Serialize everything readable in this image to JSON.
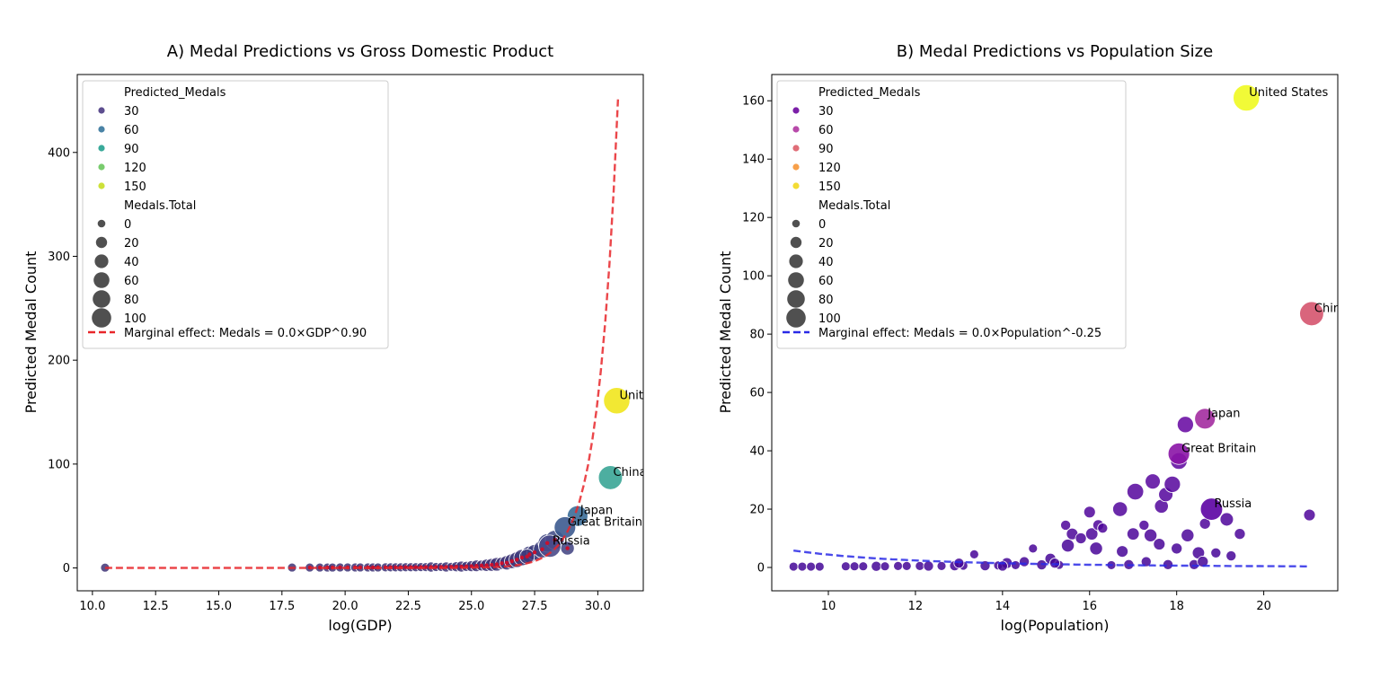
{
  "chart_data": [
    {
      "type": "scatter",
      "title": "A) Medal Predictions vs Gross Domestic Product",
      "xlabel": "log(GDP)",
      "ylabel": "Predicted Medal Count",
      "xlim": [
        9.4,
        31.8
      ],
      "ylim": [
        -22,
        475
      ],
      "xticks": [
        "10.0",
        "12.5",
        "15.0",
        "17.5",
        "20.0",
        "22.5",
        "25.0",
        "27.5",
        "30.0"
      ],
      "yticks": [
        "0",
        "100",
        "200",
        "300",
        "400"
      ],
      "xtick_values": [
        10,
        12.5,
        15,
        17.5,
        20,
        22.5,
        25,
        27.5,
        30
      ],
      "ytick_values": [
        0,
        100,
        200,
        300,
        400
      ],
      "palette": "viridis",
      "curve_color": "#e8262a",
      "legend": {
        "hue_title": "Predicted_Medals",
        "hue_entries": [
          {
            "label": "30",
            "color": "#5d4e8f"
          },
          {
            "label": "60",
            "color": "#4a83a6"
          },
          {
            "label": "90",
            "color": "#3aaa9a"
          },
          {
            "label": "120",
            "color": "#79cc6e"
          },
          {
            "label": "150",
            "color": "#cde13a"
          }
        ],
        "size_title": "Medals.Total",
        "size_entries": [
          "0",
          "20",
          "40",
          "60",
          "80",
          "100"
        ],
        "line_label": "Marginal effect: Medals = 0.0×GDP^0.90"
      },
      "curve": {
        "x_start": 10.5,
        "x_end": 30.8,
        "y_end": 452
      },
      "labeled_points": [
        {
          "name": "United States",
          "x": 30.75,
          "y": 161,
          "size": 113,
          "color": "#f1e51d"
        },
        {
          "name": "China",
          "x": 30.5,
          "y": 87,
          "size": 88,
          "color": "#3aa596"
        },
        {
          "name": "Japan",
          "x": 29.2,
          "y": 50,
          "size": 58,
          "color": "#3b6d98"
        },
        {
          "name": "Great Britain",
          "x": 28.7,
          "y": 39,
          "size": 65,
          "color": "#3c5a8f"
        },
        {
          "name": "Russia",
          "x": 28.1,
          "y": 21,
          "size": 71,
          "color": "#4a4a8a"
        }
      ],
      "points": [
        {
          "x": 10.5,
          "y": 0.3,
          "size": 2
        },
        {
          "x": 17.9,
          "y": 0.4,
          "size": 2
        },
        {
          "x": 18.6,
          "y": 0.4,
          "size": 2
        },
        {
          "x": 19.0,
          "y": 0.4,
          "size": 2
        },
        {
          "x": 19.3,
          "y": 0.4,
          "size": 2
        },
        {
          "x": 19.5,
          "y": 0.4,
          "size": 2
        },
        {
          "x": 19.8,
          "y": 0.5,
          "size": 2
        },
        {
          "x": 20.1,
          "y": 0.5,
          "size": 2
        },
        {
          "x": 20.4,
          "y": 0.5,
          "size": 2
        },
        {
          "x": 20.6,
          "y": 0.5,
          "size": 2
        },
        {
          "x": 20.9,
          "y": 0.5,
          "size": 2
        },
        {
          "x": 21.1,
          "y": 0.5,
          "size": 2
        },
        {
          "x": 21.3,
          "y": 0.5,
          "size": 2
        },
        {
          "x": 21.6,
          "y": 0.6,
          "size": 2
        },
        {
          "x": 21.8,
          "y": 0.6,
          "size": 2
        },
        {
          "x": 22.0,
          "y": 0.6,
          "size": 2
        },
        {
          "x": 22.2,
          "y": 0.6,
          "size": 2
        },
        {
          "x": 22.4,
          "y": 0.7,
          "size": 2
        },
        {
          "x": 22.6,
          "y": 0.7,
          "size": 2
        },
        {
          "x": 22.8,
          "y": 0.7,
          "size": 2
        },
        {
          "x": 23.0,
          "y": 0.8,
          "size": 2
        },
        {
          "x": 23.2,
          "y": 0.8,
          "size": 2
        },
        {
          "x": 23.4,
          "y": 0.9,
          "size": 4
        },
        {
          "x": 23.6,
          "y": 0.9,
          "size": 2
        },
        {
          "x": 23.8,
          "y": 1.0,
          "size": 2
        },
        {
          "x": 24.0,
          "y": 1.0,
          "size": 4
        },
        {
          "x": 24.2,
          "y": 1.1,
          "size": 2
        },
        {
          "x": 24.4,
          "y": 1.2,
          "size": 4
        },
        {
          "x": 24.6,
          "y": 1.3,
          "size": 6
        },
        {
          "x": 24.8,
          "y": 1.5,
          "size": 4
        },
        {
          "x": 25.0,
          "y": 1.7,
          "size": 6
        },
        {
          "x": 25.2,
          "y": 2.0,
          "size": 8
        },
        {
          "x": 25.4,
          "y": 2.3,
          "size": 6
        },
        {
          "x": 25.6,
          "y": 2.6,
          "size": 10
        },
        {
          "x": 25.8,
          "y": 3.0,
          "size": 12
        },
        {
          "x": 26.0,
          "y": 3.5,
          "size": 15
        },
        {
          "x": 26.2,
          "y": 4.5,
          "size": 10
        },
        {
          "x": 26.4,
          "y": 5.0,
          "size": 18
        },
        {
          "x": 26.6,
          "y": 6.5,
          "size": 20
        },
        {
          "x": 26.8,
          "y": 8.0,
          "size": 25
        },
        {
          "x": 27.0,
          "y": 10.0,
          "size": 28
        },
        {
          "x": 27.3,
          "y": 13.0,
          "size": 30
        },
        {
          "x": 27.5,
          "y": 15.0,
          "size": 25
        },
        {
          "x": 27.8,
          "y": 18.0,
          "size": 35
        },
        {
          "x": 28.0,
          "y": 24.0,
          "size": 40
        },
        {
          "x": 28.3,
          "y": 27.0,
          "size": 45
        },
        {
          "x": 28.8,
          "y": 19.0,
          "size": 15
        },
        {
          "x": 27.2,
          "y": 11.0,
          "size": 20
        }
      ]
    },
    {
      "type": "scatter",
      "title": "B) Medal Predictions vs Population Size",
      "xlabel": "log(Population)",
      "ylabel": "Predicted Medal Count",
      "xlim": [
        8.7,
        21.7
      ],
      "ylim": [
        -8,
        169
      ],
      "xticks": [
        "10",
        "12",
        "14",
        "16",
        "18",
        "20"
      ],
      "yticks": [
        "0",
        "20",
        "40",
        "60",
        "80",
        "100",
        "120",
        "140",
        "160"
      ],
      "xtick_values": [
        10,
        12,
        14,
        16,
        18,
        20
      ],
      "ytick_values": [
        0,
        20,
        40,
        60,
        80,
        100,
        120,
        140,
        160
      ],
      "palette": "plasma",
      "curve_color": "#2a2ae6",
      "legend": {
        "hue_title": "Predicted_Medals",
        "hue_entries": [
          {
            "label": "30",
            "color": "#7b1fa8"
          },
          {
            "label": "60",
            "color": "#b84aaa"
          },
          {
            "label": "90",
            "color": "#e06e78"
          },
          {
            "label": "120",
            "color": "#f7a04a"
          },
          {
            "label": "150",
            "color": "#f3dc34"
          }
        ],
        "size_title": "Medals.Total",
        "size_entries": [
          "0",
          "20",
          "40",
          "60",
          "80",
          "100"
        ],
        "line_label": "Marginal effect: Medals = 0.0×Population^-0.25"
      },
      "curve": {
        "x_start": 9.2,
        "x_end": 21.0,
        "y_start": 5.8,
        "y_end": 0.4
      },
      "labeled_points": [
        {
          "name": "United States",
          "x": 19.6,
          "y": 161,
          "size": 113,
          "color": "#f0f921"
        },
        {
          "name": "China",
          "x": 21.1,
          "y": 87,
          "size": 88,
          "color": "#d5546e"
        },
        {
          "name": "Japan",
          "x": 18.65,
          "y": 51,
          "size": 58,
          "color": "#a32ca0"
        },
        {
          "name": "Great Britain",
          "x": 18.05,
          "y": 39,
          "size": 65,
          "color": "#8a14a6"
        },
        {
          "name": "Russia",
          "x": 18.8,
          "y": 20,
          "size": 71,
          "color": "#5c02a3"
        }
      ],
      "points": [
        {
          "x": 9.2,
          "y": 0.3,
          "size": 2
        },
        {
          "x": 9.4,
          "y": 0.3,
          "size": 2
        },
        {
          "x": 9.6,
          "y": 0.3,
          "size": 2
        },
        {
          "x": 9.8,
          "y": 0.3,
          "size": 2
        },
        {
          "x": 10.4,
          "y": 0.4,
          "size": 2
        },
        {
          "x": 10.6,
          "y": 0.4,
          "size": 2
        },
        {
          "x": 10.8,
          "y": 0.4,
          "size": 2
        },
        {
          "x": 11.1,
          "y": 0.4,
          "size": 4
        },
        {
          "x": 11.3,
          "y": 0.4,
          "size": 2
        },
        {
          "x": 11.6,
          "y": 0.5,
          "size": 2
        },
        {
          "x": 11.8,
          "y": 0.5,
          "size": 2
        },
        {
          "x": 12.1,
          "y": 0.5,
          "size": 2
        },
        {
          "x": 12.3,
          "y": 0.5,
          "size": 4
        },
        {
          "x": 12.6,
          "y": 0.5,
          "size": 2
        },
        {
          "x": 12.9,
          "y": 0.6,
          "size": 4
        },
        {
          "x": 13.1,
          "y": 0.6,
          "size": 2
        },
        {
          "x": 13.35,
          "y": 4.5,
          "size": 2
        },
        {
          "x": 13.6,
          "y": 0.6,
          "size": 4
        },
        {
          "x": 13.9,
          "y": 0.7,
          "size": 2
        },
        {
          "x": 14.1,
          "y": 1.5,
          "size": 6
        },
        {
          "x": 14.3,
          "y": 0.8,
          "size": 2
        },
        {
          "x": 14.5,
          "y": 2.0,
          "size": 4
        },
        {
          "x": 14.7,
          "y": 6.5,
          "size": 2
        },
        {
          "x": 14.9,
          "y": 0.9,
          "size": 4
        },
        {
          "x": 15.1,
          "y": 3.0,
          "size": 6
        },
        {
          "x": 15.3,
          "y": 0.9,
          "size": 2
        },
        {
          "x": 15.45,
          "y": 14.5,
          "size": 4
        },
        {
          "x": 15.5,
          "y": 7.5,
          "size": 12
        },
        {
          "x": 15.6,
          "y": 11.5,
          "size": 8
        },
        {
          "x": 15.8,
          "y": 10.0,
          "size": 6
        },
        {
          "x": 16.0,
          "y": 19.0,
          "size": 8
        },
        {
          "x": 16.05,
          "y": 11.5,
          "size": 10
        },
        {
          "x": 16.15,
          "y": 6.5,
          "size": 12
        },
        {
          "x": 16.2,
          "y": 14.5,
          "size": 6
        },
        {
          "x": 16.3,
          "y": 13.5,
          "size": 4
        },
        {
          "x": 16.5,
          "y": 0.8,
          "size": 2
        },
        {
          "x": 16.7,
          "y": 20.0,
          "size": 20
        },
        {
          "x": 16.75,
          "y": 5.5,
          "size": 8
        },
        {
          "x": 17.0,
          "y": 11.5,
          "size": 10
        },
        {
          "x": 17.05,
          "y": 26.0,
          "size": 30
        },
        {
          "x": 17.25,
          "y": 14.5,
          "size": 4
        },
        {
          "x": 17.4,
          "y": 11.0,
          "size": 12
        },
        {
          "x": 17.45,
          "y": 29.5,
          "size": 22
        },
        {
          "x": 17.6,
          "y": 8.0,
          "size": 8
        },
        {
          "x": 17.65,
          "y": 21.0,
          "size": 16
        },
        {
          "x": 17.75,
          "y": 25.0,
          "size": 18
        },
        {
          "x": 17.9,
          "y": 28.5,
          "size": 28
        },
        {
          "x": 18.0,
          "y": 6.5,
          "size": 6
        },
        {
          "x": 18.05,
          "y": 36.5,
          "size": 30
        },
        {
          "x": 18.2,
          "y": 49.0,
          "size": 28
        },
        {
          "x": 18.25,
          "y": 11.0,
          "size": 12
        },
        {
          "x": 18.5,
          "y": 5.0,
          "size": 10
        },
        {
          "x": 18.65,
          "y": 15.0,
          "size": 6
        },
        {
          "x": 18.9,
          "y": 5.0,
          "size": 4
        },
        {
          "x": 19.15,
          "y": 16.5,
          "size": 14
        },
        {
          "x": 19.25,
          "y": 4.0,
          "size": 4
        },
        {
          "x": 19.45,
          "y": 11.5,
          "size": 6
        },
        {
          "x": 21.05,
          "y": 18.0,
          "size": 8
        },
        {
          "x": 17.3,
          "y": 2.0,
          "size": 4
        },
        {
          "x": 16.9,
          "y": 1.0,
          "size": 4
        },
        {
          "x": 15.2,
          "y": 1.5,
          "size": 4
        },
        {
          "x": 14.0,
          "y": 0.5,
          "size": 4
        },
        {
          "x": 13.0,
          "y": 1.5,
          "size": 4
        },
        {
          "x": 17.8,
          "y": 1.0,
          "size": 4
        },
        {
          "x": 18.4,
          "y": 1.0,
          "size": 4
        },
        {
          "x": 18.6,
          "y": 2.0,
          "size": 6
        }
      ]
    }
  ]
}
